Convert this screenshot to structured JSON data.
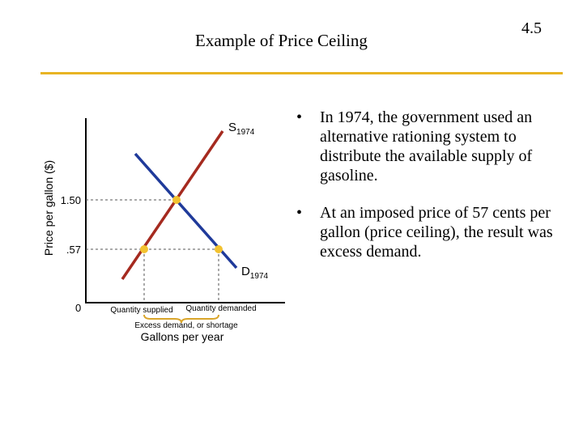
{
  "header": {
    "title": "Example of Price Ceiling",
    "slide_number": "4.5",
    "rule_color": "#e8b423"
  },
  "bullets": [
    {
      "symbol": "•",
      "text": "In 1974, the government used an alternative rationing system to distribute the available supply of gasoline."
    },
    {
      "symbol": "•",
      "text": "At an imposed price of 57 cents per gallon (price ceiling), the result was excess demand."
    }
  ],
  "graph": {
    "y_axis_label": "Price per gallon ($)",
    "x_axis_label": "Gallons per year",
    "origin_label": "0",
    "price_ticks": [
      ".57",
      "1.50"
    ],
    "supply_label": {
      "letter": "S",
      "subscript": "1974"
    },
    "demand_label": {
      "letter": "D",
      "subscript": "1974"
    },
    "quantity_supplied_label": "Quantity supplied",
    "quantity_demanded_label": "Quantity demanded",
    "shortage_label": "Excess demand, or shortage",
    "colors": {
      "supply": "#a52a1f",
      "demand": "#1f3a9a",
      "points": "#f2c230",
      "brace": "#d9a52a",
      "axis": "#000000",
      "guides": "#555555"
    }
  }
}
